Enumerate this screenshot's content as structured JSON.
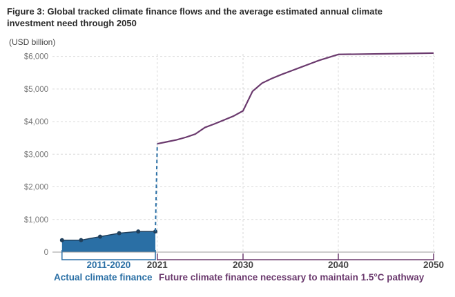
{
  "figure": {
    "title": "Figure 3: Global tracked climate finance flows and the average estimated annual climate investment need through 2050",
    "unit": "(USD billion)"
  },
  "colors": {
    "actual": "#2a6fa5",
    "actual_line": "#1f3f5c",
    "future": "#6b3a6e",
    "grid": "#d9d9d9",
    "axis": "#999999"
  },
  "chart_data": {
    "type": "line",
    "title": "Figure 3: Global tracked climate finance flows and the average estimated annual climate investment need through 2050",
    "ylabel": "(USD billion)",
    "xlabel": "",
    "ylim": [
      0,
      6200
    ],
    "xlim": [
      2010,
      2050
    ],
    "y_ticks": [
      0,
      1000,
      2000,
      3000,
      4000,
      5000,
      6000
    ],
    "y_tick_labels": [
      "0",
      "$1,000",
      "$2,000",
      "$3,000",
      "$4,000",
      "$5,000",
      "$6,000"
    ],
    "x_ticks": [
      2021,
      2030,
      2040,
      2050
    ],
    "x_tick_labels": [
      "2021",
      "2030",
      "2040",
      "2050"
    ],
    "grid": true,
    "period_label": "2011-2020",
    "period_range": [
      2011,
      2020.8
    ],
    "series": [
      {
        "name": "Actual climate finance",
        "style": "area-with-markers",
        "x": [
          2011,
          2013,
          2015,
          2017,
          2019
        ],
        "y": [
          364,
          368,
          473,
          580,
          632
        ]
      },
      {
        "name": "",
        "style": "dashed",
        "x": [
          2019,
          2021
        ],
        "y": [
          632,
          3320
        ]
      },
      {
        "name": "Future climate finance necessary to maintain 1.5°C pathway",
        "style": "line",
        "x": [
          2021,
          2022,
          2023,
          2024,
          2025,
          2026,
          2027,
          2028,
          2029,
          2030,
          2031,
          2032,
          2033,
          2034,
          2035,
          2036,
          2037,
          2038,
          2039,
          2040,
          2045,
          2050
        ],
        "y": [
          3320,
          3380,
          3440,
          3520,
          3620,
          3820,
          3930,
          4050,
          4170,
          4330,
          4930,
          5180,
          5320,
          5440,
          5550,
          5660,
          5770,
          5880,
          5970,
          6060,
          6080,
          6100
        ]
      }
    ],
    "labels": {
      "actual": "Actual climate finance",
      "future": "Future climate finance necessary to maintain 1.5°C pathway"
    }
  }
}
